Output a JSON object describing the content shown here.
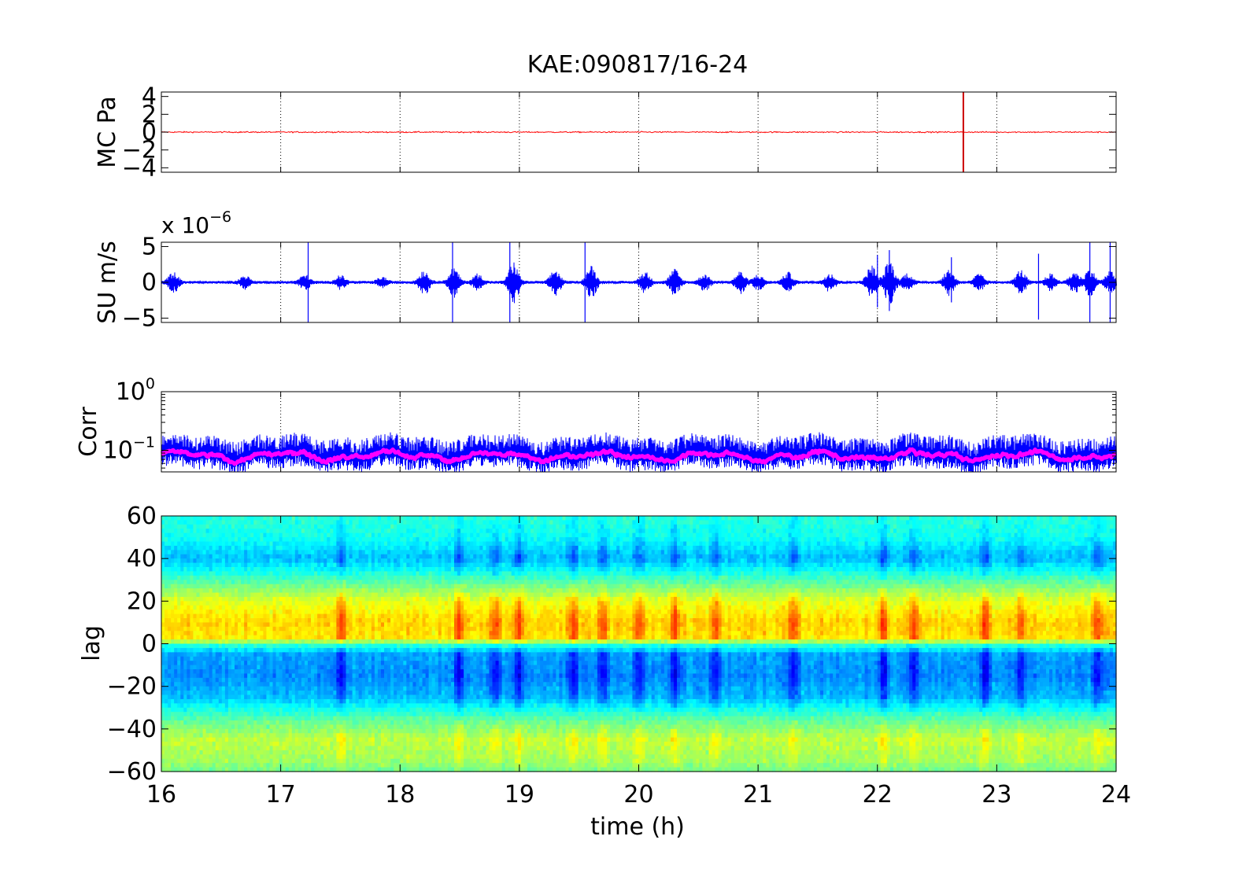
{
  "figure_title": "KAE:090817/16-24",
  "chart_data": [
    {
      "type": "line",
      "ylabel": "MC Pa",
      "xlim": [
        16,
        24
      ],
      "ylim": [
        -4.5,
        4.5
      ],
      "yticks": [
        4,
        2,
        0,
        -2,
        -4
      ],
      "ytick_labels": [
        "4",
        "2",
        "0",
        "−2",
        "−4"
      ],
      "xticks": [
        16,
        17,
        18,
        19,
        20,
        21,
        22,
        23,
        24
      ],
      "grid": "vertical dotted",
      "series": [
        {
          "color": "#ff0000",
          "baseline": 0.0,
          "noise_amplitude": 0.12
        }
      ],
      "annotations": [
        {
          "x": 22.72,
          "y_from": -4.5,
          "y_to": 4.5,
          "color": "#cc0000",
          "kind": "spike"
        }
      ]
    },
    {
      "type": "line",
      "ylabel": "SU m/s",
      "exponent_label": "x 10",
      "exponent_power": "−6",
      "xlim": [
        16,
        24
      ],
      "ylim": [
        -5.6,
        5.6
      ],
      "yticks": [
        5,
        0,
        -5
      ],
      "ytick_labels": [
        "5",
        "0",
        "−5"
      ],
      "xticks": [
        16,
        17,
        18,
        19,
        20,
        21,
        22,
        23,
        24
      ],
      "grid": "vertical dotted",
      "series": [
        {
          "color": "#0000ff",
          "baseline": 0.0
        }
      ],
      "bursts": [
        [
          16.1,
          1.2
        ],
        [
          16.7,
          0.8
        ],
        [
          17.2,
          0.9
        ],
        [
          17.5,
          0.8
        ],
        [
          17.85,
          0.6
        ],
        [
          18.2,
          1.5
        ],
        [
          18.45,
          1.8
        ],
        [
          18.65,
          1.0
        ],
        [
          18.95,
          2.5
        ],
        [
          19.3,
          1.6
        ],
        [
          19.6,
          2.0
        ],
        [
          20.05,
          1.3
        ],
        [
          20.3,
          1.6
        ],
        [
          20.55,
          1.0
        ],
        [
          20.85,
          1.3
        ],
        [
          21.0,
          0.9
        ],
        [
          21.25,
          1.2
        ],
        [
          21.6,
          1.2
        ],
        [
          21.95,
          2.1
        ],
        [
          22.1,
          2.8
        ],
        [
          22.25,
          1.1
        ],
        [
          22.6,
          1.6
        ],
        [
          22.85,
          1.0
        ],
        [
          23.2,
          1.5
        ],
        [
          23.45,
          1.0
        ],
        [
          23.65,
          1.3
        ],
        [
          23.78,
          1.7
        ],
        [
          23.95,
          1.3
        ]
      ],
      "spikes": [
        [
          17.23,
          5.6,
          -5.6
        ],
        [
          18.44,
          5.6,
          -5.6
        ],
        [
          18.92,
          5.6,
          -5.6
        ],
        [
          19.55,
          5.6,
          -5.6
        ],
        [
          23.78,
          5.6,
          -5.6
        ],
        [
          23.95,
          5.6,
          -5.6
        ],
        [
          22.0,
          3.8,
          -3.5
        ],
        [
          22.1,
          4.5,
          -4.0
        ],
        [
          22.62,
          3.5,
          -2.8
        ],
        [
          23.35,
          4.0,
          -5.2
        ]
      ]
    },
    {
      "type": "line",
      "ylabel": "Corr",
      "xlim": [
        16,
        24
      ],
      "yscale": "log",
      "ylim": [
        0.043,
        1.0
      ],
      "ytick_labels": [
        {
          "value": 1.0,
          "base": "10",
          "power": "0"
        },
        {
          "value": 0.1,
          "base": "10",
          "power": "−1"
        }
      ],
      "xticks": [
        16,
        17,
        18,
        19,
        20,
        21,
        22,
        23,
        24
      ],
      "grid": "vertical dotted",
      "series": [
        {
          "color": "#0000ff",
          "role": "raw",
          "median": 0.085
        },
        {
          "color": "#ff00ff",
          "role": "smoothed",
          "median": 0.085
        }
      ]
    },
    {
      "type": "heatmap",
      "ylabel": "lag",
      "xlabel": "time (h)",
      "xlim": [
        16,
        24
      ],
      "ylim": [
        -60,
        60
      ],
      "yticks": [
        60,
        40,
        20,
        0,
        -20,
        -40,
        -60
      ],
      "ytick_labels": [
        "60",
        "40",
        "20",
        "0",
        "−20",
        "−40",
        "−60"
      ],
      "xticks": [
        16,
        17,
        18,
        19,
        20,
        21,
        22,
        23,
        24
      ],
      "xtick_labels": [
        "16",
        "17",
        "18",
        "19",
        "20",
        "21",
        "22",
        "23",
        "24"
      ],
      "colormap": "jet",
      "lag_profile": [
        [
          60,
          0.42
        ],
        [
          50,
          0.4
        ],
        [
          40,
          0.33
        ],
        [
          30,
          0.45
        ],
        [
          20,
          0.58
        ],
        [
          10,
          0.64
        ],
        [
          2,
          0.62
        ],
        [
          0,
          0.44
        ],
        [
          -5,
          0.31
        ],
        [
          -15,
          0.29
        ],
        [
          -25,
          0.33
        ],
        [
          -35,
          0.46
        ],
        [
          -45,
          0.55
        ],
        [
          -55,
          0.52
        ],
        [
          -60,
          0.48
        ]
      ],
      "strong_columns": [
        17.5,
        18.5,
        18.8,
        19.0,
        19.45,
        19.7,
        20.0,
        20.3,
        20.65,
        21.3,
        22.05,
        22.3,
        22.9,
        23.2,
        23.85
      ]
    }
  ]
}
